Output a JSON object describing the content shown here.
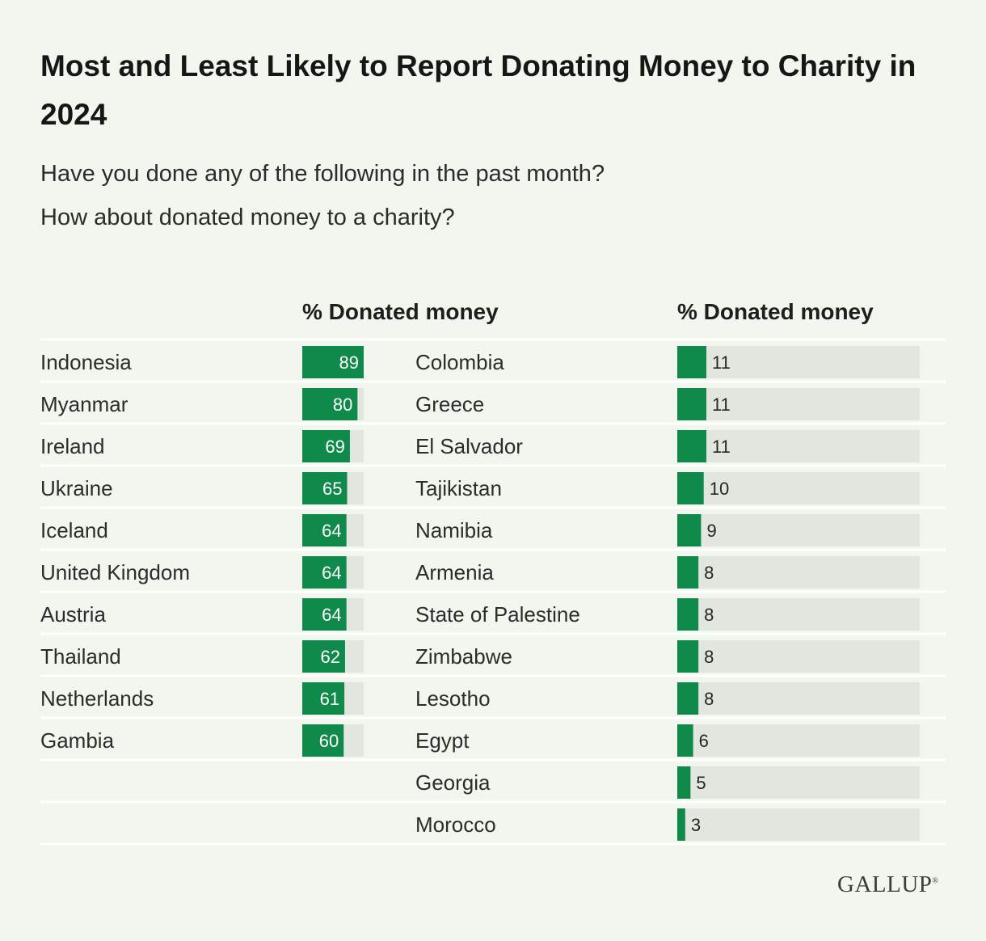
{
  "title": "Most and Least Likely to Report Donating Money to Charity in 2024",
  "subtitle_lines": [
    "Have you done any of the following in the past month?",
    "How about donated money to a charity?"
  ],
  "logo_text": "GALLUP",
  "logo_mark": "®",
  "colors": {
    "bar": "#0f8a4a",
    "track": "#e1e6df",
    "divider": "#ffffff",
    "label": "#2c2c2c"
  },
  "chart_data": [
    {
      "type": "bar",
      "orientation": "horizontal",
      "panel": "most-likely",
      "column_header": "% Donated money",
      "xlim": [
        0,
        100
      ],
      "categories": [
        "Indonesia",
        "Myanmar",
        "Ireland",
        "Ukraine",
        "Iceland",
        "United Kingdom",
        "Austria",
        "Thailand",
        "Netherlands",
        "Gambia"
      ],
      "values": [
        89,
        80,
        69,
        65,
        64,
        64,
        64,
        62,
        61,
        60
      ],
      "value_labels": [
        "89",
        "80",
        "69",
        "65",
        "64",
        "64",
        "64",
        "62",
        "61",
        "60"
      ]
    },
    {
      "type": "bar",
      "orientation": "horizontal",
      "panel": "least-likely",
      "column_header": "% Donated money",
      "xlim": [
        0,
        100
      ],
      "categories": [
        "Colombia",
        "Greece",
        "El Salvador",
        "Tajikistan",
        "Namibia",
        "Armenia",
        "State of Palestine",
        "Zimbabwe",
        "Lesotho",
        "Egypt",
        "Georgia",
        "Morocco"
      ],
      "values": [
        11,
        11,
        11,
        10,
        9,
        8,
        8,
        8,
        8,
        6,
        5,
        3
      ],
      "value_labels": [
        "11",
        "11",
        "11",
        "10",
        "9",
        "8",
        "8",
        "8",
        "8",
        "6",
        "5",
        "3"
      ]
    }
  ]
}
